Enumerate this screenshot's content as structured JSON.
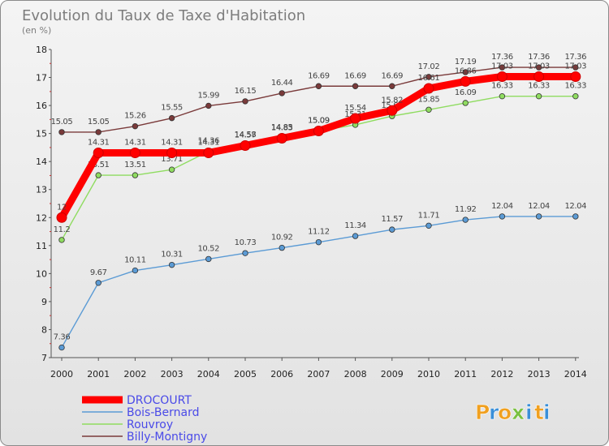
{
  "chart_data": {
    "type": "line",
    "title": "Evolution du Taux de Taxe d'Habitation",
    "subtitle": "(en %)",
    "x": [
      "2000",
      "2001",
      "2002",
      "2003",
      "2004",
      "2005",
      "2006",
      "2007",
      "2008",
      "2009",
      "2010",
      "2011",
      "2012",
      "2013",
      "2014"
    ],
    "ylim": [
      7,
      18
    ],
    "yticks": [
      "7",
      "8",
      "9",
      "10",
      "11",
      "12",
      "13",
      "14",
      "15",
      "16",
      "17",
      "18"
    ],
    "grid": false,
    "legend_position": "bottom-left",
    "series": [
      {
        "name": "DROCOURT",
        "color": "#ff0000",
        "values": [
          12.0,
          14.31,
          14.31,
          14.31,
          14.31,
          14.57,
          14.83,
          15.09,
          15.54,
          15.82,
          16.61,
          16.86,
          17.03,
          17.03,
          17.03
        ],
        "labels": [
          "12",
          "14.31",
          "14.31",
          "14.31",
          "14.31",
          "14.57",
          "14.83",
          "15.09",
          "15.54",
          "15.82",
          "16.61",
          "16.86",
          "17.03",
          "17.03",
          "17.03"
        ]
      },
      {
        "name": "Bois-Bernard",
        "color": "#5b9bd5",
        "values": [
          7.36,
          9.67,
          10.11,
          10.31,
          10.52,
          10.73,
          10.92,
          11.12,
          11.34,
          11.57,
          11.71,
          11.92,
          12.04,
          12.04,
          12.04
        ],
        "labels": [
          "7.36",
          "9.67",
          "10.11",
          "10.31",
          "10.52",
          "10.73",
          "10.92",
          "11.12",
          "11.34",
          "11.57",
          "11.71",
          "11.92",
          "12.04",
          "12.04",
          "12.04"
        ]
      },
      {
        "name": "Rouvroy",
        "color": "#8fdc60",
        "values": [
          11.2,
          13.51,
          13.51,
          13.71,
          14.36,
          14.58,
          14.85,
          15.09,
          15.31,
          15.62,
          15.85,
          16.09,
          16.33,
          16.33,
          16.33
        ],
        "labels": [
          "11.2",
          "13.51",
          "13.51",
          "13.71",
          "14.36",
          "14.58",
          "14.85",
          "15.09",
          "15.31",
          "15.62",
          "15.85",
          "16.09",
          "16.33",
          "16.33",
          "16.33"
        ]
      },
      {
        "name": "Billy-Montigny",
        "color": "#7a3a3a",
        "values": [
          15.05,
          15.05,
          15.26,
          15.55,
          15.99,
          16.15,
          16.44,
          16.69,
          16.69,
          16.69,
          17.02,
          17.19,
          17.36,
          17.36,
          17.36
        ],
        "labels": [
          "15.05",
          "15.05",
          "15.26",
          "15.55",
          "15.99",
          "16.15",
          "16.44",
          "16.69",
          "16.69",
          "16.69",
          "17.02",
          "17.19",
          "17.36",
          "17.36",
          "17.36"
        ]
      }
    ]
  },
  "logo": {
    "letters": [
      "P",
      "r",
      "o",
      "x",
      "i",
      "t",
      "i"
    ],
    "colors": [
      "#f0a020",
      "#3a8fd8",
      "#f0a020",
      "#7ac040",
      "#3a8fd8",
      "#f0a020",
      "#3a8fd8"
    ]
  }
}
